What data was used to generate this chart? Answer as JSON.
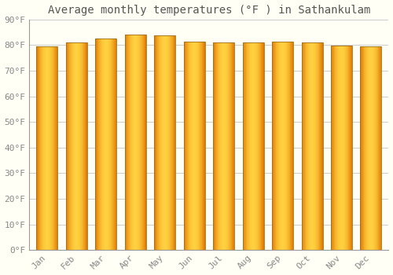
{
  "title": "Average monthly temperatures (°F ) in Sathankulam",
  "months": [
    "Jan",
    "Feb",
    "Mar",
    "Apr",
    "May",
    "Jun",
    "Jul",
    "Aug",
    "Sep",
    "Oct",
    "Nov",
    "Dec"
  ],
  "values": [
    79.5,
    81.0,
    82.5,
    84.0,
    83.8,
    81.5,
    81.0,
    81.0,
    81.5,
    81.0,
    79.8,
    79.5
  ],
  "ylim": [
    0,
    90
  ],
  "yticks": [
    0,
    10,
    20,
    30,
    40,
    50,
    60,
    70,
    80,
    90
  ],
  "ytick_labels": [
    "0°F",
    "10°F",
    "20°F",
    "30°F",
    "40°F",
    "50°F",
    "60°F",
    "70°F",
    "80°F",
    "90°F"
  ],
  "bar_color_center": "#FFD040",
  "bar_color_edge": "#E07800",
  "bar_edge_color": "#A07020",
  "background_color": "#FFFFF5",
  "grid_color": "#CCCCCC",
  "title_color": "#555555",
  "tick_color": "#888888",
  "title_fontsize": 10,
  "tick_fontsize": 8,
  "bar_width": 0.72
}
